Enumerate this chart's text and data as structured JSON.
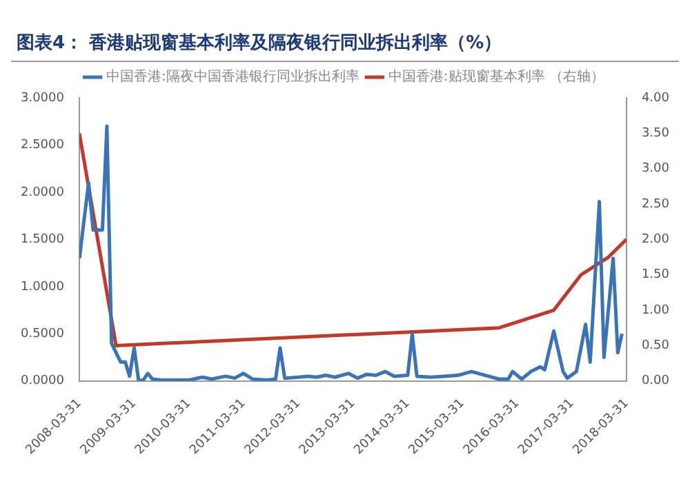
{
  "chart_data": {
    "type": "line",
    "title": "图表4：  香港贴现窗基本利率及隔夜银行同业拆出利率（%）",
    "legend": "top",
    "marker": "none",
    "line_style": "solid",
    "series": [
      {
        "name": "中国香港:隔夜中国香港银行同业拆出利率",
        "color": "#3a73b8",
        "x": [
          "2008-04",
          "2008-05",
          "2008-06",
          "2008-07",
          "2008-08",
          "2008-09",
          "2008-10",
          "2008-11",
          "2008-12",
          "2009-01",
          "2009-02",
          "2009-03",
          "2009-04",
          "2009-05",
          "2009-06",
          "2009-07",
          "2009-08",
          "2009-10",
          "2010-01",
          "2010-04",
          "2010-07",
          "2010-09",
          "2010-12",
          "2011-02",
          "2011-04",
          "2011-06",
          "2011-09",
          "2011-11",
          "2011-12",
          "2012-01",
          "2012-04",
          "2012-06",
          "2012-08",
          "2012-10",
          "2012-12",
          "2013-03",
          "2013-05",
          "2013-07",
          "2013-09",
          "2013-11",
          "2014-01",
          "2014-04",
          "2014-05",
          "2014-06",
          "2014-09",
          "2014-12",
          "2015-03",
          "2015-06",
          "2015-09",
          "2015-12",
          "2016-02",
          "2016-03",
          "2016-05",
          "2016-07",
          "2016-09",
          "2016-10",
          "2016-12",
          "2017-02",
          "2017-03",
          "2017-05",
          "2017-07",
          "2017-08",
          "2017-10",
          "2017-11",
          "2018-01",
          "2018-02",
          "2018-03"
        ],
        "values": [
          1.3,
          1.7,
          2.1,
          1.6,
          1.6,
          1.6,
          2.7,
          0.4,
          0.3,
          0.2,
          0.2,
          0.05,
          0.35,
          0.0,
          0.01,
          0.08,
          0.02,
          0.01,
          0.01,
          0.01,
          0.04,
          0.02,
          0.05,
          0.03,
          0.08,
          0.02,
          0.01,
          0.02,
          0.35,
          0.03,
          0.04,
          0.05,
          0.04,
          0.06,
          0.04,
          0.08,
          0.03,
          0.07,
          0.06,
          0.1,
          0.05,
          0.06,
          0.5,
          0.05,
          0.04,
          0.05,
          0.06,
          0.1,
          0.06,
          0.02,
          0.02,
          0.1,
          0.02,
          0.1,
          0.15,
          0.12,
          0.53,
          0.1,
          0.03,
          0.1,
          0.6,
          0.2,
          1.9,
          0.25,
          1.3,
          0.3,
          0.5
        ]
      },
      {
        "name": "中国香港:贴现窗基本利率 （右轴）",
        "color": "#c0392b",
        "axis": "y2",
        "x": [
          "2008-03-31",
          "2008-12",
          "2015-12",
          "2016-12",
          "2017-03",
          "2017-06",
          "2017-12",
          "2018-03-31"
        ],
        "values": [
          3.5,
          0.5,
          0.75,
          1.0,
          1.25,
          1.5,
          1.75,
          2.0
        ]
      }
    ],
    "xlim": [
      "2008-03-31",
      "2018-03-31"
    ],
    "xticks": [
      "2008-03-31",
      "2009-03-31",
      "2010-03-31",
      "2011-03-31",
      "2012-03-31",
      "2013-03-31",
      "2014-03-31",
      "2015-03-31",
      "2016-03-31",
      "2017-03-31",
      "2018-03-31"
    ],
    "ylim": [
      0,
      3
    ],
    "yticks": [
      {
        "value": 0,
        "label": "0.0000"
      },
      {
        "value": 0.5,
        "label": "0.5000"
      },
      {
        "value": 1,
        "label": "1.0000"
      },
      {
        "value": 1.5,
        "label": "1.5000"
      },
      {
        "value": 2,
        "label": "2.0000"
      },
      {
        "value": 2.5,
        "label": "2.5000"
      },
      {
        "value": 3,
        "label": "3.0000"
      }
    ],
    "y2lim": [
      0,
      4
    ],
    "y2ticks": [
      {
        "value": 0,
        "label": "0.00"
      },
      {
        "value": 0.5,
        "label": "0.50"
      },
      {
        "value": 1,
        "label": "1.00"
      },
      {
        "value": 1.5,
        "label": "1.50"
      },
      {
        "value": 2,
        "label": "2.00"
      },
      {
        "value": 2.5,
        "label": "2.50"
      },
      {
        "value": 3,
        "label": "3.00"
      },
      {
        "value": 3.5,
        "label": "3.50"
      },
      {
        "value": 4,
        "label": "4.00"
      }
    ]
  }
}
